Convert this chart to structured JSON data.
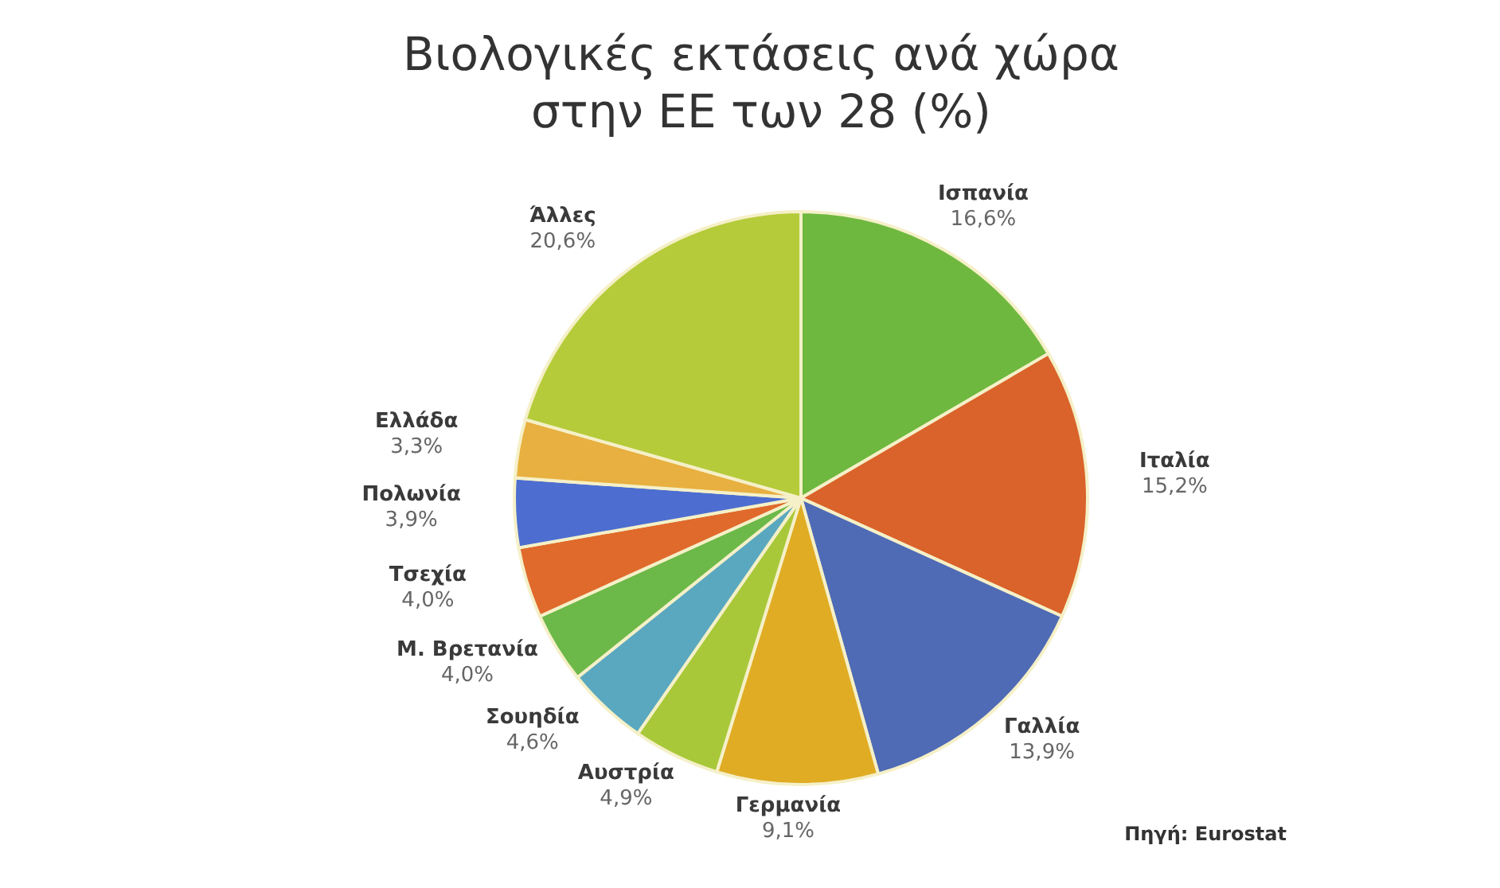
{
  "chart_data": {
    "type": "pie",
    "title": "Βιολογικές εκτάσεις ανά χώρα στην ΕΕ των 28 (%)",
    "categories": [
      "Ισπανία",
      "Ιταλία",
      "Γαλλία",
      "Γερμανία",
      "Αυστρία",
      "Σουηδία",
      "Μ. Βρετανία",
      "Τσεχία",
      "Πολωνία",
      "Ελλάδα",
      "Άλλες"
    ],
    "values": [
      16.6,
      15.2,
      13.9,
      9.1,
      4.9,
      4.6,
      4.0,
      4.0,
      3.9,
      3.3,
      20.6
    ],
    "value_labels": [
      "16,6%",
      "15,2%",
      "13,9%",
      "9,1%",
      "4,9%",
      "4,6%",
      "4,0%",
      "4,0%",
      "3,9%",
      "3,3%",
      "20,6%"
    ],
    "colors": [
      "#6fb83f",
      "#d9632a",
      "#4f6bb5",
      "#e0ac24",
      "#a8c83a",
      "#5aa8bf",
      "#6cb848",
      "#e06a2c",
      "#4d6ed0",
      "#e8b040",
      "#b5cb3a"
    ],
    "annotations": [
      "Πηγή: Eurostat"
    ],
    "legend": false
  }
}
